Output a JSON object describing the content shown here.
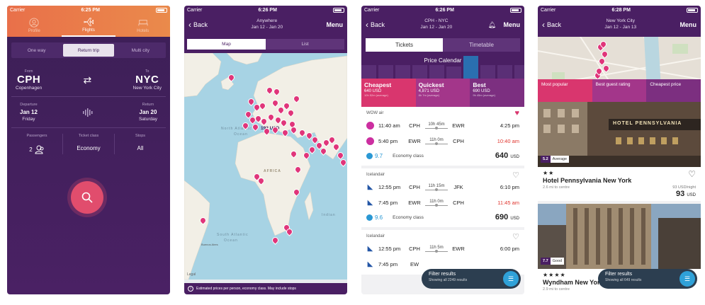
{
  "p1": {
    "status": {
      "carrier": "Carrier",
      "time": "6:25 PM"
    },
    "tabs": [
      {
        "label": "Profile"
      },
      {
        "label": "Flights"
      },
      {
        "label": "Hotels"
      }
    ],
    "trip_types": [
      "One way",
      "Return trip",
      "Multi city"
    ],
    "from": {
      "label": "From",
      "code": "CPH",
      "name": "Copenhagen"
    },
    "to": {
      "label": "To",
      "code": "NYC",
      "name": "New York City"
    },
    "departure": {
      "label": "Departure",
      "date": "Jan 12",
      "day": "Friday"
    },
    "return": {
      "label": "Return",
      "date": "Jan 20",
      "day": "Saturday"
    },
    "passengers": {
      "label": "Passengers",
      "value": "2"
    },
    "ticket_class": {
      "label": "Ticket class",
      "value": "Economy"
    },
    "stops": {
      "label": "Stops",
      "value": "All"
    }
  },
  "p2": {
    "status": {
      "carrier": "Carrier",
      "time": "6:26 PM"
    },
    "back": "Back",
    "title": "Anywhere",
    "dates": "Jan 12 - Jan 20",
    "menu": "Menu",
    "toggle": [
      "Map",
      "List"
    ],
    "price_label": "192 USD",
    "map_labels": {
      "north_atlantic": "North Atlantic",
      "ocean": "Ocean",
      "africa": "AFRICA",
      "south_atlantic": "South Atlantic",
      "indian": "Indian",
      "legal": "Legal",
      "buenos_aires": "Buenos Aires"
    },
    "footer": "Estimated prices per person, economy class. May include stops"
  },
  "p3": {
    "status": {
      "carrier": "Carrier",
      "time": "6:26 PM"
    },
    "back": "Back",
    "title": "CPH - NYC",
    "dates": "Jan 12 - Jan 20",
    "menu": "Menu",
    "tabs": [
      "Tickets",
      "Timetable"
    ],
    "calendar_title": "Price Calendar",
    "calendar_bars": [
      0.55,
      0.55,
      0.55,
      0.55,
      0.55,
      0.5,
      0.95,
      0.55,
      0.55,
      0.55
    ],
    "sort": [
      {
        "h": "Cheapest",
        "p": "640 USD",
        "d": "10h 52m (average)"
      },
      {
        "h": "Quickest",
        "p": "4,871 USD",
        "d": "8h 7m (average)"
      },
      {
        "h": "Best",
        "p": "690 USD",
        "d": "9h 45m (average)"
      }
    ],
    "flights": [
      {
        "airline": "WOW air",
        "legs": [
          {
            "dep": "11:40 am",
            "from": "CPH",
            "dur": "10h 45m",
            "to": "EWR",
            "arr": "4:25 pm"
          },
          {
            "dep": "5:40 pm",
            "from": "EWR",
            "dur": "11h 0m",
            "to": "CPH",
            "arr": "10:40 am"
          }
        ],
        "score": "9.7",
        "cls": "Economy class",
        "price": "640",
        "cur": "USD"
      },
      {
        "airline": "Icelandair",
        "legs": [
          {
            "dep": "12:55 pm",
            "from": "CPH",
            "dur": "11h 15m",
            "to": "JFK",
            "arr": "6:10 pm"
          },
          {
            "dep": "7:45 pm",
            "from": "EWR",
            "dur": "11h 0m",
            "to": "CPH",
            "arr": "11:45 am"
          }
        ],
        "score": "9.6",
        "cls": "Economy class",
        "price": "690",
        "cur": "USD"
      },
      {
        "airline": "Icelandair",
        "legs": [
          {
            "dep": "12:55 pm",
            "from": "CPH",
            "dur": "11h 5m",
            "to": "EWR",
            "arr": "6:00 pm"
          },
          {
            "dep": "7:45 pm",
            "from": "EW",
            "dur": "",
            "to": "",
            "arr": ""
          }
        ]
      }
    ],
    "filter": {
      "title": "Filter results",
      "sub": "Showing all 2249 results"
    }
  },
  "p4": {
    "status": {
      "carrier": "Carrier",
      "time": "6:28 PM"
    },
    "back": "Back",
    "title": "New York City",
    "dates": "Jan 12 - Jan 13",
    "menu": "Menu",
    "sort": [
      "Most popular",
      "Best guest rating",
      "Cheapest price"
    ],
    "hotels": [
      {
        "rating": "5.2",
        "rating_word": "Average",
        "stars": "★★",
        "name": "Hotel Pennsylvania New York",
        "dist": "2.6 mi to centre",
        "per_night": "93 USD/night",
        "price": "93",
        "cur": "USD",
        "sign": "HOTEL PENNSYLVANIA"
      },
      {
        "rating": "7.7",
        "rating_word": "Good",
        "stars": "★★★★",
        "name": "Wyndham New York Hotel",
        "dist": "2.9 mi to centre"
      }
    ],
    "filter": {
      "title": "Filter results",
      "sub": "Showing all 649 results"
    }
  }
}
